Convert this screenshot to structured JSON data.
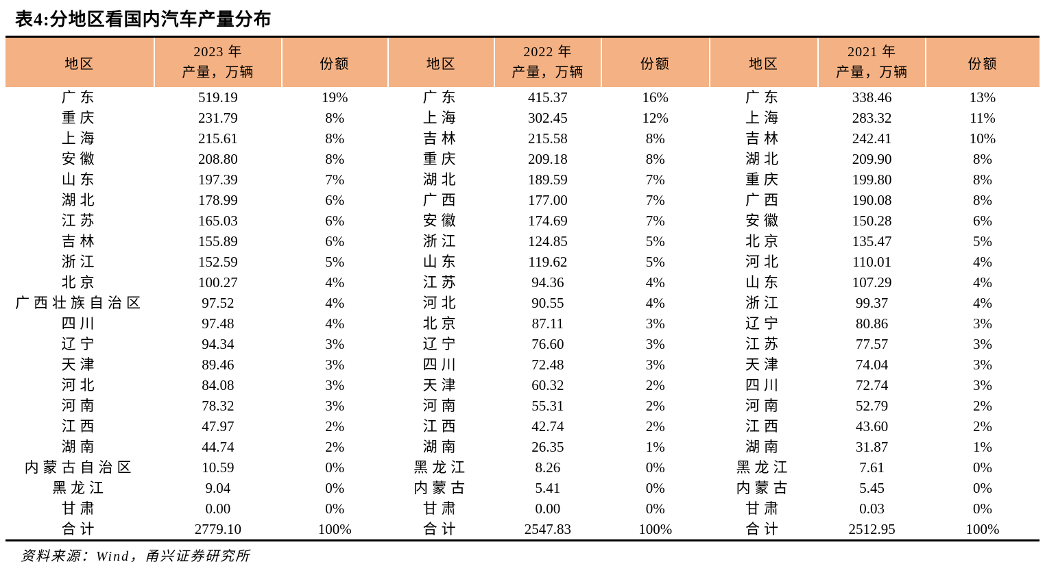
{
  "title": "表4:分地区看国内汽车产量分布",
  "source_note": "资料来源：Wind，甬兴证券研究所",
  "colors": {
    "header_bg": "#F4B183",
    "rule": "#000000",
    "text": "#000000"
  },
  "table": {
    "groups": [
      {
        "region_header": "地区",
        "year_header_line1": "2023 年",
        "year_header_line2": "产量，万辆",
        "share_header": "份额",
        "rows": [
          [
            "广东",
            "519.19",
            "19%"
          ],
          [
            "重庆",
            "231.79",
            "8%"
          ],
          [
            "上海",
            "215.61",
            "8%"
          ],
          [
            "安徽",
            "208.80",
            "8%"
          ],
          [
            "山东",
            "197.39",
            "7%"
          ],
          [
            "湖北",
            "178.99",
            "6%"
          ],
          [
            "江苏",
            "165.03",
            "6%"
          ],
          [
            "吉林",
            "155.89",
            "6%"
          ],
          [
            "浙江",
            "152.59",
            "5%"
          ],
          [
            "北京",
            "100.27",
            "4%"
          ],
          [
            "广西壮族自治区",
            "97.52",
            "4%"
          ],
          [
            "四川",
            "97.48",
            "4%"
          ],
          [
            "辽宁",
            "94.34",
            "3%"
          ],
          [
            "天津",
            "89.46",
            "3%"
          ],
          [
            "河北",
            "84.08",
            "3%"
          ],
          [
            "河南",
            "78.32",
            "3%"
          ],
          [
            "江西",
            "47.97",
            "2%"
          ],
          [
            "湖南",
            "44.74",
            "2%"
          ],
          [
            "内蒙古自治区",
            "10.59",
            "0%"
          ],
          [
            "黑龙江",
            "9.04",
            "0%"
          ],
          [
            "甘肃",
            "0.00",
            "0%"
          ],
          [
            "合计",
            "2779.10",
            "100%"
          ]
        ]
      },
      {
        "region_header": "地区",
        "year_header_line1": "2022 年",
        "year_header_line2": "产量，万辆",
        "share_header": "份额",
        "rows": [
          [
            "广东",
            "415.37",
            "16%"
          ],
          [
            "上海",
            "302.45",
            "12%"
          ],
          [
            "吉林",
            "215.58",
            "8%"
          ],
          [
            "重庆",
            "209.18",
            "8%"
          ],
          [
            "湖北",
            "189.59",
            "7%"
          ],
          [
            "广西",
            "177.00",
            "7%"
          ],
          [
            "安徽",
            "174.69",
            "7%"
          ],
          [
            "浙江",
            "124.85",
            "5%"
          ],
          [
            "山东",
            "119.62",
            "5%"
          ],
          [
            "江苏",
            "94.36",
            "4%"
          ],
          [
            "河北",
            "90.55",
            "4%"
          ],
          [
            "北京",
            "87.11",
            "3%"
          ],
          [
            "辽宁",
            "76.60",
            "3%"
          ],
          [
            "四川",
            "72.48",
            "3%"
          ],
          [
            "天津",
            "60.32",
            "2%"
          ],
          [
            "河南",
            "55.31",
            "2%"
          ],
          [
            "江西",
            "42.74",
            "2%"
          ],
          [
            "湖南",
            "26.35",
            "1%"
          ],
          [
            "黑龙江",
            "8.26",
            "0%"
          ],
          [
            "内蒙古",
            "5.41",
            "0%"
          ],
          [
            "甘肃",
            "0.00",
            "0%"
          ],
          [
            "合计",
            "2547.83",
            "100%"
          ]
        ]
      },
      {
        "region_header": "地区",
        "year_header_line1": "2021 年",
        "year_header_line2": "产量，万辆",
        "share_header": "份额",
        "rows": [
          [
            "广东",
            "338.46",
            "13%"
          ],
          [
            "上海",
            "283.32",
            "11%"
          ],
          [
            "吉林",
            "242.41",
            "10%"
          ],
          [
            "湖北",
            "209.90",
            "8%"
          ],
          [
            "重庆",
            "199.80",
            "8%"
          ],
          [
            "广西",
            "190.08",
            "8%"
          ],
          [
            "安徽",
            "150.28",
            "6%"
          ],
          [
            "北京",
            "135.47",
            "5%"
          ],
          [
            "河北",
            "110.01",
            "4%"
          ],
          [
            "山东",
            "107.29",
            "4%"
          ],
          [
            "浙江",
            "99.37",
            "4%"
          ],
          [
            "辽宁",
            "80.86",
            "3%"
          ],
          [
            "江苏",
            "77.57",
            "3%"
          ],
          [
            "天津",
            "74.04",
            "3%"
          ],
          [
            "四川",
            "72.74",
            "3%"
          ],
          [
            "河南",
            "52.79",
            "2%"
          ],
          [
            "江西",
            "43.60",
            "2%"
          ],
          [
            "湖南",
            "31.87",
            "1%"
          ],
          [
            "黑龙江",
            "7.61",
            "0%"
          ],
          [
            "内蒙古",
            "5.45",
            "0%"
          ],
          [
            "甘肃",
            "0.03",
            "0%"
          ],
          [
            "合计",
            "2512.95",
            "100%"
          ]
        ]
      }
    ]
  }
}
